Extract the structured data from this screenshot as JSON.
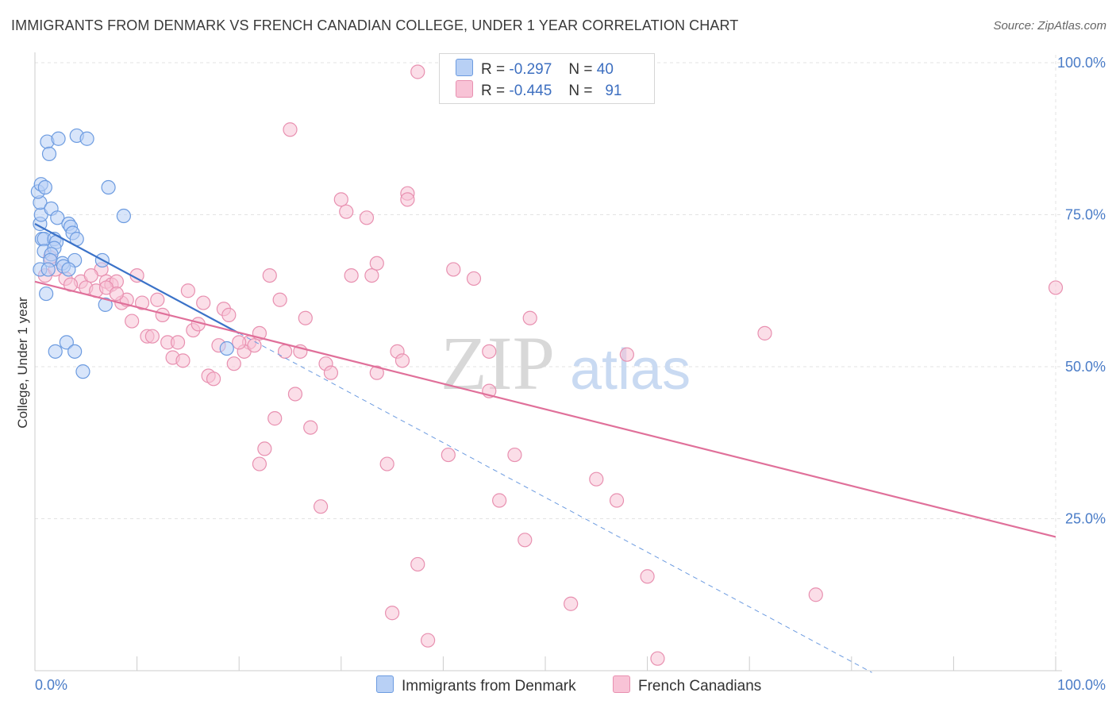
{
  "header": {
    "title": "IMMIGRANTS FROM DENMARK VS FRENCH CANADIAN COLLEGE, UNDER 1 YEAR CORRELATION CHART",
    "source": "Source: ZipAtlas.com"
  },
  "watermark": {
    "zip": "ZIP",
    "atlas": "atlas"
  },
  "legend": {
    "r_label": "R =",
    "n_label": "N =",
    "rows": [
      {
        "r": "-0.297",
        "n": "40"
      },
      {
        "r": "-0.445",
        "n": "91"
      }
    ]
  },
  "bottom_legend": [
    "Immigrants from Denmark",
    "French Canadians"
  ],
  "colors": {
    "blue_fill": "#b8d0f5",
    "blue_stroke": "#6c9be0",
    "blue_line": "#3b72c8",
    "pink_fill": "#f8c3d6",
    "pink_stroke": "#e890b0",
    "pink_line": "#e0709a",
    "grid": "#e3e3e3",
    "tick_text": "#4a7cc7"
  },
  "chart_data": {
    "type": "scatter",
    "xlabel": "",
    "ylabel": "College, Under 1 year",
    "xlim": [
      0,
      100
    ],
    "ylim": [
      0,
      100
    ],
    "x_tick_labels": [
      "0.0%",
      "100.0%"
    ],
    "y_tick_labels": [
      "25.0%",
      "50.0%",
      "75.0%",
      "100.0%"
    ],
    "y_tick_values": [
      25,
      50,
      75,
      100
    ],
    "grid": true,
    "series": [
      {
        "name": "Immigrants from Denmark",
        "color": "#6c9be0",
        "trend": {
          "x0": 0,
          "y0": 73.5,
          "x1": 20,
          "y1": 55.5,
          "dashed_to_x": 82
        },
        "points": [
          [
            0.5,
            73.5
          ],
          [
            0.5,
            66
          ],
          [
            0.6,
            75
          ],
          [
            0.5,
            77
          ],
          [
            0.3,
            78.8
          ],
          [
            0.6,
            80
          ],
          [
            1.0,
            79.5
          ],
          [
            1.2,
            87
          ],
          [
            1.4,
            85
          ],
          [
            2.3,
            87.5
          ],
          [
            4.1,
            88
          ],
          [
            5.1,
            87.5
          ],
          [
            7.2,
            79.5
          ],
          [
            8.7,
            74.8
          ],
          [
            1.6,
            76
          ],
          [
            2.2,
            74.5
          ],
          [
            3.3,
            73.5
          ],
          [
            3.5,
            73
          ],
          [
            3.7,
            72
          ],
          [
            0.7,
            71
          ],
          [
            0.9,
            71
          ],
          [
            1.9,
            71
          ],
          [
            2.1,
            70.5
          ],
          [
            4.1,
            71
          ],
          [
            0.9,
            69
          ],
          [
            1.9,
            69.5
          ],
          [
            1.6,
            68.5
          ],
          [
            1.5,
            67.5
          ],
          [
            2.7,
            67
          ],
          [
            3.9,
            67.5
          ],
          [
            6.6,
            67.5
          ],
          [
            1.3,
            66
          ],
          [
            2.8,
            66.5
          ],
          [
            3.3,
            66
          ],
          [
            6.9,
            60.2
          ],
          [
            1.1,
            62
          ],
          [
            3.1,
            54
          ],
          [
            2.0,
            52.5
          ],
          [
            3.9,
            52.5
          ],
          [
            4.7,
            49.2
          ],
          [
            18.8,
            53
          ]
        ]
      },
      {
        "name": "French Canadians",
        "color": "#e890b0",
        "trend": {
          "x0": 0,
          "y0": 64,
          "x1": 100,
          "y1": 22
        },
        "points": [
          [
            37.5,
            98.5
          ],
          [
            25.0,
            89
          ],
          [
            18.0,
            53.5
          ],
          [
            30.0,
            77.5
          ],
          [
            36.5,
            78.5
          ],
          [
            36.5,
            77.5
          ],
          [
            30.5,
            75.5
          ],
          [
            32.5,
            74.5
          ],
          [
            33.0,
            65
          ],
          [
            31.0,
            65
          ],
          [
            33.5,
            67
          ],
          [
            41.0,
            66
          ],
          [
            43.0,
            64.5
          ],
          [
            23.0,
            65
          ],
          [
            24.0,
            61
          ],
          [
            26.5,
            58
          ],
          [
            22.0,
            55.5
          ],
          [
            21.0,
            54
          ],
          [
            20.5,
            52.5
          ],
          [
            24.5,
            52.5
          ],
          [
            26.0,
            52.5
          ],
          [
            28.5,
            50.5
          ],
          [
            29.0,
            49
          ],
          [
            33.5,
            49
          ],
          [
            35.5,
            52.5
          ],
          [
            36.0,
            51
          ],
          [
            44.5,
            52.5
          ],
          [
            48.5,
            58
          ],
          [
            58.0,
            52
          ],
          [
            71.5,
            55.5
          ],
          [
            100.0,
            63
          ],
          [
            1.5,
            68
          ],
          [
            1.0,
            65
          ],
          [
            2.0,
            66
          ],
          [
            3.0,
            64.5
          ],
          [
            4.5,
            64
          ],
          [
            5.0,
            63
          ],
          [
            6.0,
            62.5
          ],
          [
            6.5,
            66
          ],
          [
            7.0,
            64
          ],
          [
            7.5,
            63.5
          ],
          [
            8.0,
            64
          ],
          [
            8.5,
            60.5
          ],
          [
            9.0,
            61
          ],
          [
            10.0,
            65
          ],
          [
            10.5,
            60.5
          ],
          [
            11.0,
            55
          ],
          [
            11.5,
            55
          ],
          [
            12.0,
            61
          ],
          [
            12.5,
            58.5
          ],
          [
            13.0,
            54
          ],
          [
            13.5,
            51.5
          ],
          [
            14.0,
            54
          ],
          [
            14.5,
            51
          ],
          [
            15.0,
            62.5
          ],
          [
            15.5,
            56
          ],
          [
            16.0,
            57
          ],
          [
            16.5,
            60.5
          ],
          [
            17.0,
            48.5
          ],
          [
            17.5,
            48
          ],
          [
            18.5,
            59.5
          ],
          [
            19.0,
            58.5
          ],
          [
            19.5,
            50.5
          ],
          [
            20.0,
            54
          ],
          [
            21.5,
            53.5
          ],
          [
            22.5,
            36.5
          ],
          [
            23.5,
            41.5
          ],
          [
            25.5,
            45.5
          ],
          [
            27.0,
            40
          ],
          [
            28.0,
            27
          ],
          [
            40.5,
            35.5
          ],
          [
            44.5,
            46
          ],
          [
            45.5,
            28
          ],
          [
            47.0,
            35.5
          ],
          [
            48.0,
            21.5
          ],
          [
            52.5,
            11
          ],
          [
            55.0,
            31.5
          ],
          [
            57.0,
            28
          ],
          [
            60.0,
            15.5
          ],
          [
            61.0,
            2
          ],
          [
            76.5,
            12.5
          ],
          [
            37.5,
            17.5
          ],
          [
            35.0,
            9.5
          ],
          [
            38.5,
            5
          ],
          [
            34.5,
            34
          ],
          [
            22.0,
            34
          ],
          [
            3.5,
            63.5
          ],
          [
            9.5,
            57.5
          ],
          [
            7.0,
            63
          ],
          [
            8.0,
            62
          ],
          [
            5.5,
            65
          ]
        ]
      }
    ]
  }
}
